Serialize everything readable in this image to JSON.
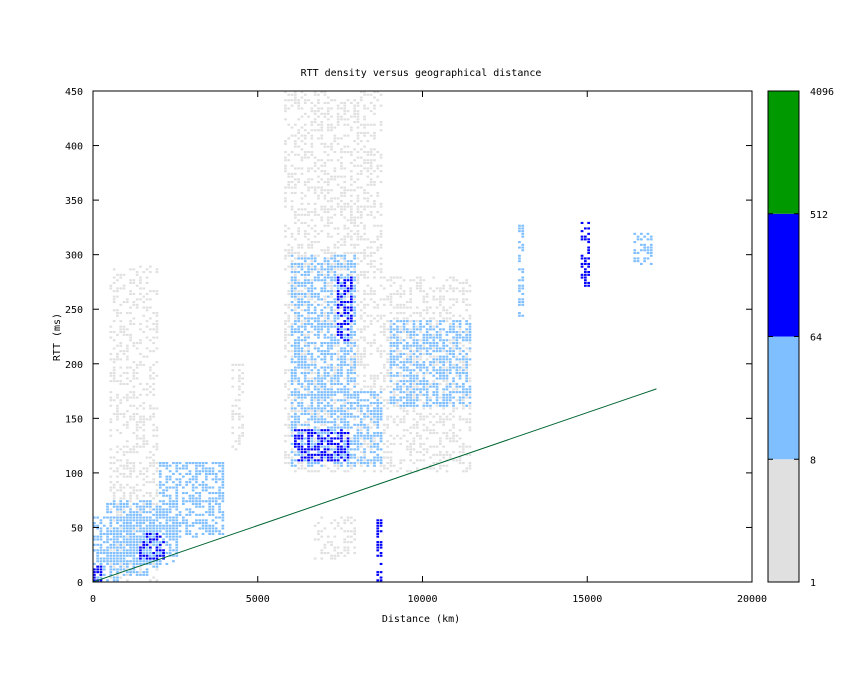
{
  "chart_data": {
    "type": "heatmap",
    "title": "RTT density versus geographical distance",
    "xlabel": "Distance (km)",
    "ylabel": "RTT (ms)",
    "xlim": [
      0,
      20000
    ],
    "ylim": [
      0,
      450
    ],
    "xticks": [
      0,
      5000,
      10000,
      15000,
      20000
    ],
    "yticks": [
      0,
      50,
      100,
      150,
      200,
      250,
      300,
      350,
      400,
      450
    ],
    "colorbar": {
      "labels": [
        "1",
        "8",
        "64",
        "512",
        "4096"
      ],
      "bins": [
        {
          "from": 1,
          "to": 8,
          "color": "#e0e0e0"
        },
        {
          "from": 8,
          "to": 64,
          "color": "#80bfff"
        },
        {
          "from": 64,
          "to": 512,
          "color": "#0000ff"
        },
        {
          "from": 512,
          "to": 4096,
          "color": "#009900"
        }
      ]
    },
    "reference_line": {
      "x": [
        0,
        17100
      ],
      "y": [
        0,
        177
      ],
      "color": "#006633"
    },
    "cell_size": {
      "km": 100,
      "ms": 2.5
    },
    "density_regions": [
      {
        "x": [
          0,
          800
        ],
        "y": [
          0,
          60
        ],
        "level": 1
      },
      {
        "x": [
          400,
          2600
        ],
        "y": [
          15,
          75
        ],
        "level": 1
      },
      {
        "x": [
          2000,
          4000
        ],
        "y": [
          40,
          110
        ],
        "level": 1
      },
      {
        "x": [
          500,
          2000
        ],
        "y": [
          0,
          290
        ],
        "level": 0
      },
      {
        "x": [
          800,
          2000
        ],
        "y": [
          5,
          60
        ],
        "level": 1
      },
      {
        "x": [
          1400,
          2200
        ],
        "y": [
          20,
          45
        ],
        "level": 2
      },
      {
        "x": [
          0,
          400
        ],
        "y": [
          0,
          15
        ],
        "level": 2
      },
      {
        "x": [
          5800,
          8800
        ],
        "y": [
          100,
          450
        ],
        "level": 0
      },
      {
        "x": [
          6000,
          8800
        ],
        "y": [
          105,
          175
        ],
        "level": 1
      },
      {
        "x": [
          6100,
          7800
        ],
        "y": [
          110,
          140
        ],
        "level": 2
      },
      {
        "x": [
          6000,
          8000
        ],
        "y": [
          170,
          300
        ],
        "level": 1
      },
      {
        "x": [
          7400,
          7900
        ],
        "y": [
          220,
          280
        ],
        "level": 2
      },
      {
        "x": [
          6700,
          8000
        ],
        "y": [
          20,
          60
        ],
        "level": 0
      },
      {
        "x": [
          8600,
          8800
        ],
        "y": [
          0,
          60
        ],
        "level": 2
      },
      {
        "x": [
          8800,
          11500
        ],
        "y": [
          100,
          280
        ],
        "level": 0
      },
      {
        "x": [
          9000,
          11500
        ],
        "y": [
          160,
          240
        ],
        "level": 1
      },
      {
        "x": [
          12900,
          13100
        ],
        "y": [
          240,
          330
        ],
        "level": 1
      },
      {
        "x": [
          14800,
          15100
        ],
        "y": [
          270,
          330
        ],
        "level": 2
      },
      {
        "x": [
          16400,
          17000
        ],
        "y": [
          290,
          320
        ],
        "level": 1
      },
      {
        "x": [
          4200,
          4600
        ],
        "y": [
          120,
          200
        ],
        "level": 0
      }
    ]
  }
}
